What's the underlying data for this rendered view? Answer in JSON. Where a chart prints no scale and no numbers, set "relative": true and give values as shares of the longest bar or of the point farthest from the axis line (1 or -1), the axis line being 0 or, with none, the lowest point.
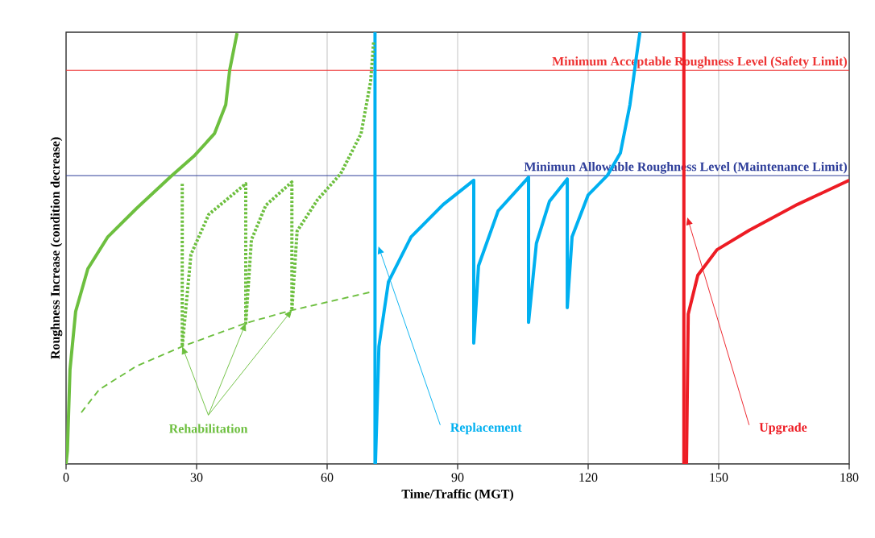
{
  "chart_data": {
    "type": "line",
    "relative": true,
    "xlabel": "Time/Traffic (MGT)",
    "ylabel": "Roughness Increase (condition decrease)",
    "xlim": [
      0,
      180
    ],
    "xticks": [
      0,
      30,
      60,
      90,
      120,
      150,
      180
    ],
    "grid": "x",
    "series": [
      {
        "color": "#6dbf3f",
        "line_style": "solid",
        "x": [
          0,
          0.3,
          0.9,
          2.2,
          5,
          9.6,
          16.1,
          24.1,
          29.4,
          34.1,
          36.7,
          37.6,
          39.3
        ],
        "values": [
          0,
          0.03,
          0.218,
          0.353,
          0.452,
          0.526,
          0.591,
          0.666,
          0.713,
          0.765,
          0.832,
          0.912,
          0.998
        ]
      },
      {
        "color": "#6dbf3f",
        "line_style": "dotted",
        "x": [
          26.7,
          26.7,
          28.7,
          32.8,
          41.3,
          41.3,
          42.6,
          45.9,
          51.9,
          51.9,
          53.1,
          57.8,
          63.1,
          67.8,
          70,
          70.7
        ],
        "values": [
          0.649,
          0.272,
          0.485,
          0.578,
          0.649,
          0.326,
          0.519,
          0.599,
          0.653,
          0.356,
          0.539,
          0.612,
          0.672,
          0.765,
          0.886,
          0.979
        ]
      },
      {
        "color": "#6dbf3f",
        "line_style": "dashed",
        "x": [
          3.5,
          7.6,
          16.1,
          26.7,
          41.3,
          51.9,
          70.4
        ],
        "values": [
          0.119,
          0.172,
          0.226,
          0.272,
          0.326,
          0.356,
          0.399
        ]
      },
      {
        "color": "#00b0f0",
        "line_style": "solid",
        "x": [
          71.1,
          71.9,
          74.1,
          79.3,
          86.7,
          93.7,
          93.7,
          94.8,
          99.3,
          106.3,
          106.3,
          108.1,
          111.1,
          115.2,
          115.2,
          116.3,
          120,
          124.4,
          127.4,
          129.6,
          131.1,
          131.9
        ],
        "values": [
          0,
          0.272,
          0.422,
          0.526,
          0.601,
          0.657,
          0.28,
          0.459,
          0.586,
          0.664,
          0.328,
          0.511,
          0.608,
          0.66,
          0.362,
          0.526,
          0.623,
          0.668,
          0.72,
          0.832,
          0.944,
          1.0
        ]
      },
      {
        "color": "#ed1c24",
        "line_style": "solid",
        "x": [
          142.6,
          143,
          145.2,
          149.6,
          157,
          168.1,
          180
        ],
        "values": [
          0,
          0.347,
          0.437,
          0.496,
          0.541,
          0.601,
          0.657
        ]
      }
    ],
    "ref_lines": [
      {
        "axis": "y",
        "value": 0.912,
        "label": "Minimum Acceptable Roughness Level (Safety Limit)",
        "color": "#ee3333"
      },
      {
        "axis": "y",
        "value": 0.668,
        "label": "Minimun Allowable Roughness Level (Maintenance Limit)",
        "color": "#2e3e9a"
      },
      {
        "axis": "x",
        "value": 71,
        "color": "#00b0f0"
      },
      {
        "axis": "x",
        "value": 142,
        "color": "#ed1c24"
      }
    ],
    "annotations": [
      "Rehabilitation",
      "Replacement",
      "Upgrade"
    ]
  }
}
